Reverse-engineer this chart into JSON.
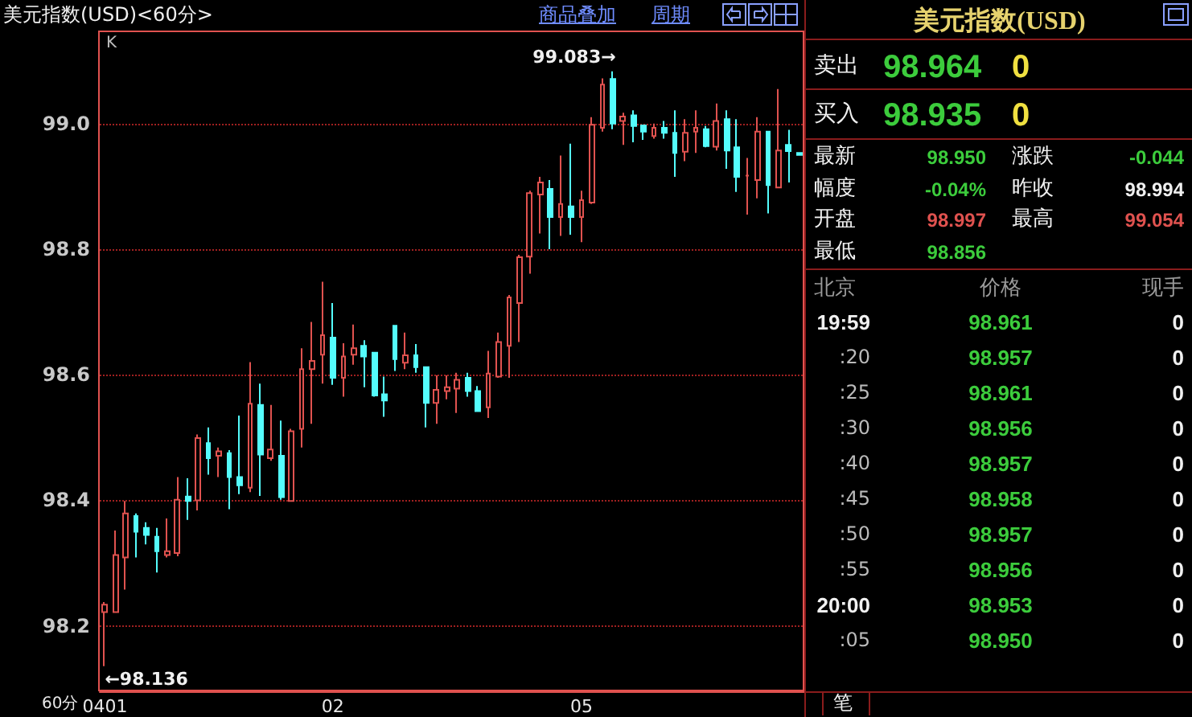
{
  "chart_data": [
    {
      "type": "candlestick",
      "title": "美元指数(USD)<60分>",
      "xlabel": "60分",
      "categories": [
        "0401",
        null,
        null,
        null,
        null,
        null,
        null,
        null,
        null,
        null,
        null,
        null,
        null,
        null,
        null,
        null,
        null,
        null,
        null,
        null,
        null,
        null,
        "02",
        null,
        null,
        null,
        null,
        null,
        null,
        null,
        null,
        null,
        null,
        null,
        null,
        null,
        null,
        null,
        null,
        null,
        null,
        null,
        null,
        null,
        null,
        null,
        "05",
        null,
        null,
        null,
        null,
        null,
        null,
        null,
        null,
        null,
        null,
        null,
        null,
        null,
        null,
        null,
        null,
        null,
        null,
        null,
        null,
        null
      ],
      "ohlc": [
        [
          98.222,
          98.238,
          98.136,
          98.234
        ],
        [
          98.222,
          98.352,
          98.222,
          98.313
        ],
        [
          98.309,
          98.399,
          98.258,
          98.379
        ],
        [
          98.375,
          98.379,
          98.309,
          98.35
        ],
        [
          98.356,
          98.365,
          98.33,
          98.345
        ],
        [
          98.342,
          98.356,
          98.285,
          98.319
        ],
        [
          98.313,
          98.371,
          98.309,
          98.319
        ],
        [
          98.316,
          98.437,
          98.311,
          98.401
        ],
        [
          98.406,
          98.435,
          98.369,
          98.399
        ],
        [
          98.4,
          98.505,
          98.384,
          98.499
        ],
        [
          98.491,
          98.516,
          98.441,
          98.467
        ],
        [
          98.471,
          98.484,
          98.437,
          98.478
        ],
        [
          98.475,
          98.48,
          98.386,
          98.437
        ],
        [
          98.437,
          98.535,
          98.41,
          98.424
        ],
        [
          98.42,
          98.62,
          98.413,
          98.554
        ],
        [
          98.552,
          98.586,
          98.407,
          98.473
        ],
        [
          98.467,
          98.552,
          98.463,
          98.481
        ],
        [
          98.471,
          98.527,
          98.401,
          98.405
        ],
        [
          98.399,
          98.514,
          98.399,
          98.51
        ],
        [
          98.514,
          98.642,
          98.484,
          98.609
        ],
        [
          98.609,
          98.684,
          98.522,
          98.622
        ],
        [
          98.632,
          98.748,
          98.586,
          98.663
        ],
        [
          98.659,
          98.714,
          98.584,
          98.595
        ],
        [
          98.595,
          98.65,
          98.565,
          98.629
        ],
        [
          98.632,
          98.68,
          98.616,
          98.642
        ],
        [
          98.646,
          98.655,
          98.58,
          98.629
        ],
        [
          98.635,
          98.635,
          98.565,
          98.567
        ],
        [
          98.569,
          98.597,
          98.533,
          98.559
        ],
        [
          98.678,
          98.678,
          98.606,
          98.625
        ],
        [
          98.619,
          98.667,
          98.609,
          98.631
        ],
        [
          98.631,
          98.649,
          98.603,
          98.612
        ],
        [
          98.612,
          98.612,
          98.516,
          98.555
        ],
        [
          98.555,
          98.599,
          98.522,
          98.576
        ],
        [
          98.574,
          98.599,
          98.561,
          98.58
        ],
        [
          98.578,
          98.603,
          98.539,
          98.592
        ],
        [
          98.595,
          98.603,
          98.565,
          98.574
        ],
        [
          98.574,
          98.582,
          98.542,
          98.542
        ],
        [
          98.548,
          98.638,
          98.531,
          98.602
        ],
        [
          98.597,
          98.667,
          98.595,
          98.652
        ],
        [
          98.646,
          98.727,
          98.595,
          98.723
        ],
        [
          98.714,
          98.791,
          98.652,
          98.787
        ],
        [
          98.788,
          98.893,
          98.761,
          98.889
        ],
        [
          98.887,
          98.915,
          98.825,
          98.906
        ],
        [
          98.896,
          98.91,
          98.8,
          98.851
        ],
        [
          98.851,
          98.949,
          98.821,
          98.872
        ],
        [
          98.868,
          98.968,
          98.823,
          98.851
        ],
        [
          98.851,
          98.893,
          98.811,
          98.878
        ],
        [
          98.874,
          99.01,
          98.872,
          98.998
        ],
        [
          98.993,
          99.072,
          98.987,
          99.062
        ],
        [
          99.071,
          99.083,
          98.991,
          99.0
        ],
        [
          99.004,
          99.017,
          98.966,
          99.011
        ],
        [
          99.013,
          99.021,
          98.97,
          98.996
        ],
        [
          98.997,
          98.997,
          98.974,
          98.987
        ],
        [
          98.98,
          99.0,
          98.976,
          98.993
        ],
        [
          98.993,
          99.004,
          98.976,
          98.985
        ],
        [
          98.985,
          99.021,
          98.915,
          98.953
        ],
        [
          98.955,
          99.007,
          98.94,
          98.985
        ],
        [
          98.987,
          99.021,
          98.953,
          98.993
        ],
        [
          98.991,
          98.996,
          98.962,
          98.964
        ],
        [
          98.963,
          99.032,
          98.957,
          99.004
        ],
        [
          99.007,
          99.021,
          98.928,
          98.957
        ],
        [
          98.962,
          99.007,
          98.891,
          98.915
        ],
        [
          98.917,
          98.945,
          98.855,
          98.917
        ],
        [
          98.91,
          99.01,
          98.881,
          98.987
        ],
        [
          98.987,
          98.987,
          98.857,
          98.902
        ],
        [
          98.898,
          99.055,
          98.898,
          98.957
        ],
        [
          98.966,
          98.99,
          98.906,
          98.956
        ],
        [
          98.953,
          98.953,
          98.95,
          98.95
        ]
      ],
      "ylim": [
        98.096,
        99.148
      ],
      "yticks": [
        98.2,
        98.4,
        98.6,
        98.8,
        {
          "value": 99,
          "label": "99.0"
        }
      ],
      "grid": "y",
      "annotations": [
        "K",
        "商品叠加",
        "周期",
        "99.083→",
        "←98.136"
      ]
    },
    {
      "type": "other",
      "title": "美元指数(USD)",
      "annotations": [
        "卖出",
        "98.964",
        "0",
        "买入",
        "98.935",
        "0",
        "最新",
        "98.950",
        "涨跌",
        "-0.044",
        "幅度",
        "-0.04%",
        "昨收",
        "98.994",
        "开盘",
        "98.997",
        "最高",
        "99.054",
        "最低",
        "98.856",
        "北京",
        "价格",
        "现手",
        "19:59",
        "98.961",
        "0",
        ":20",
        "98.957",
        "0",
        ":25",
        "98.961",
        "0",
        ":30",
        "98.956",
        "0",
        ":40",
        "98.957",
        "0",
        ":45",
        "98.958",
        "0",
        ":50",
        "98.957",
        "0",
        ":55",
        "98.956",
        "0",
        "20:00",
        "98.953",
        "0",
        ":05",
        "98.950",
        "0",
        "笔"
      ]
    }
  ]
}
